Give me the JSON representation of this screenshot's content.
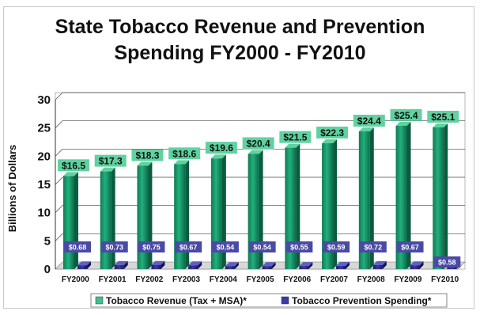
{
  "chart_data": {
    "type": "bar",
    "title": "State Tobacco Revenue and Prevention Spending FY2000 - FY2010",
    "title_lines": [
      "State Tobacco Revenue and Prevention",
      "Spending FY2000 - FY2010"
    ],
    "ylabel": "Billions of Dollars",
    "xlabel": "",
    "ylim": [
      0,
      30
    ],
    "yticks": [
      0,
      5,
      10,
      15,
      20,
      25,
      30
    ],
    "grid": true,
    "legend_position": "bottom",
    "categories": [
      "FY2000",
      "FY2001",
      "FY2002",
      "FY2003",
      "FY2004",
      "FY2005",
      "FY2006",
      "FY2007",
      "FY2008",
      "FY2009",
      "FY2010"
    ],
    "series": [
      {
        "name": "Tobacco Revenue (Tax + MSA)*",
        "color": "#1a9a6e",
        "label_color": "#5fd2a0",
        "values": [
          16.5,
          17.3,
          18.3,
          18.6,
          19.6,
          20.4,
          21.5,
          22.3,
          24.4,
          25.4,
          25.1
        ],
        "labels": [
          "$16.5",
          "$17.3",
          "$18.3",
          "$18.6",
          "$19.6",
          "$20.4",
          "$21.5",
          "$22.3",
          "$24.4",
          "$25.4",
          "$25.1"
        ]
      },
      {
        "name": "Tobacco Prevention Spending*",
        "color": "#2a2a8e",
        "label_color": "#4a4aa6",
        "values": [
          0.68,
          0.73,
          0.75,
          0.67,
          0.54,
          0.54,
          0.55,
          0.59,
          0.72,
          0.67,
          0.58
        ],
        "labels": [
          "$0.68",
          "$0.73",
          "$0.75",
          "$0.67",
          "$0.54",
          "$0.54",
          "$0.55",
          "$0.59",
          "$0.72",
          "$0.67",
          "$0.58"
        ]
      }
    ]
  }
}
